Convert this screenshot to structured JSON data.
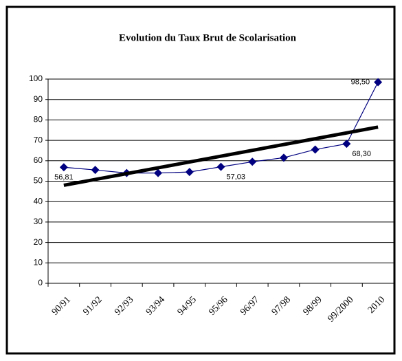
{
  "chart_data": {
    "type": "line",
    "title": "Evolution du Taux Brut de Scolarisation",
    "categories": [
      "90/91",
      "91/92",
      "92/93",
      "93/94",
      "94/95",
      "95/96",
      "96/97",
      "97/98",
      "98/99",
      "99/2000",
      "2010"
    ],
    "series": [
      {
        "color": "#000080",
        "values": [
          56.81,
          55.5,
          54,
          54,
          54.5,
          57.03,
          59.5,
          61.5,
          65.5,
          68.3,
          98.5
        ],
        "value_labels": [
          "56,81",
          null,
          null,
          null,
          null,
          "57,03",
          null,
          null,
          null,
          "68,30",
          "98,50"
        ]
      }
    ],
    "trendline": {
      "start": 48,
      "end": 76.5,
      "color": "#000000"
    },
    "ylim": [
      0,
      100
    ],
    "yticks": [
      0,
      10,
      20,
      30,
      40,
      50,
      60,
      70,
      80,
      90,
      100
    ],
    "grid": true
  }
}
